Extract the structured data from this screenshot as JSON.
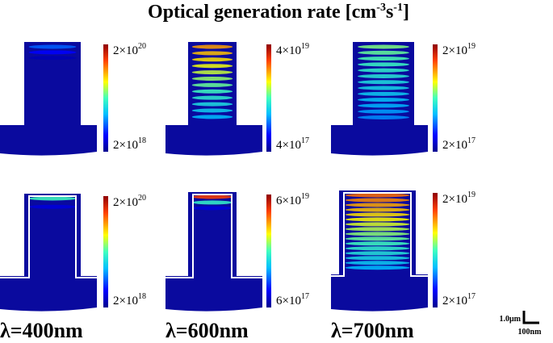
{
  "title": {
    "text": "Optical  generation  rate  [cm",
    "sup1": "-3",
    "mid": "s",
    "sup2": "-1",
    "end": "]"
  },
  "panels": [
    {
      "max": {
        "base": "2×10",
        "exp": "20"
      },
      "min": {
        "base": "2×10",
        "exp": "18"
      }
    },
    {
      "max": {
        "base": "4×10",
        "exp": "19"
      },
      "min": {
        "base": "4×10",
        "exp": "17"
      }
    },
    {
      "max": {
        "base": "2×10",
        "exp": "19"
      },
      "min": {
        "base": "2×10",
        "exp": "17"
      }
    },
    {
      "max": {
        "base": "2×10",
        "exp": "20"
      },
      "min": {
        "base": "2×10",
        "exp": "18"
      }
    },
    {
      "max": {
        "base": "6×10",
        "exp": "19"
      },
      "min": {
        "base": "6×10",
        "exp": "17"
      }
    },
    {
      "max": {
        "base": "2×10",
        "exp": "19"
      },
      "min": {
        "base": "2×10",
        "exp": "17"
      }
    }
  ],
  "wavelengths": [
    "λ=400nm",
    "λ=600nm",
    "λ=700nm"
  ],
  "scale_bar": {
    "vertical": "1.0μm",
    "horizontal": "100nm"
  }
}
